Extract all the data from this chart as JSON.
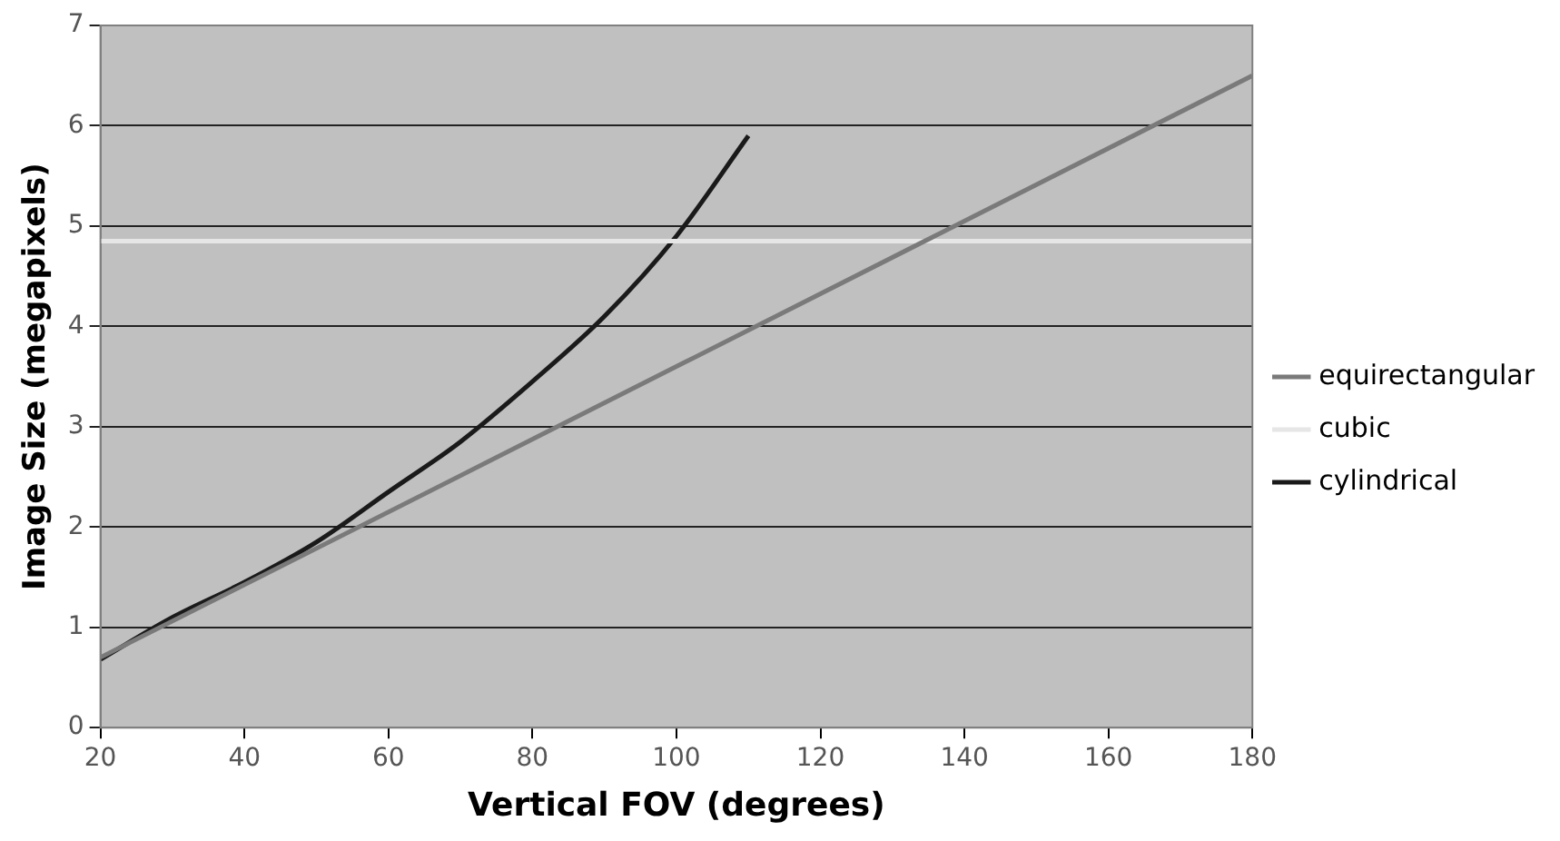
{
  "chart_data": {
    "type": "line",
    "xlabel": "Vertical FOV (degrees)",
    "ylabel": "Image Size (megapixels)",
    "xlim": [
      20,
      180
    ],
    "xticks": [
      20,
      40,
      60,
      80,
      100,
      120,
      140,
      160,
      180
    ],
    "ylim": [
      0,
      7
    ],
    "yticks": [
      0,
      1,
      2,
      3,
      4,
      5,
      6,
      7
    ],
    "grid": "y",
    "legend": "right",
    "marker": "none",
    "line_style": "solid",
    "series": [
      {
        "name": "equirectangular",
        "color": "#7a7a7a",
        "x": [
          20,
          180
        ],
        "values": [
          0.7,
          6.5
        ]
      },
      {
        "name": "cubic",
        "color": "#e6e6e6",
        "x": [
          20,
          180
        ],
        "values": [
          4.85,
          4.85
        ]
      },
      {
        "name": "cylindrical",
        "color": "#1a1a1a",
        "x": [
          20,
          30,
          40,
          50,
          60,
          70,
          80,
          90,
          100,
          110
        ],
        "values": [
          0.68,
          1.1,
          1.45,
          1.85,
          2.35,
          2.85,
          3.45,
          4.1,
          4.9,
          5.9
        ]
      }
    ]
  }
}
